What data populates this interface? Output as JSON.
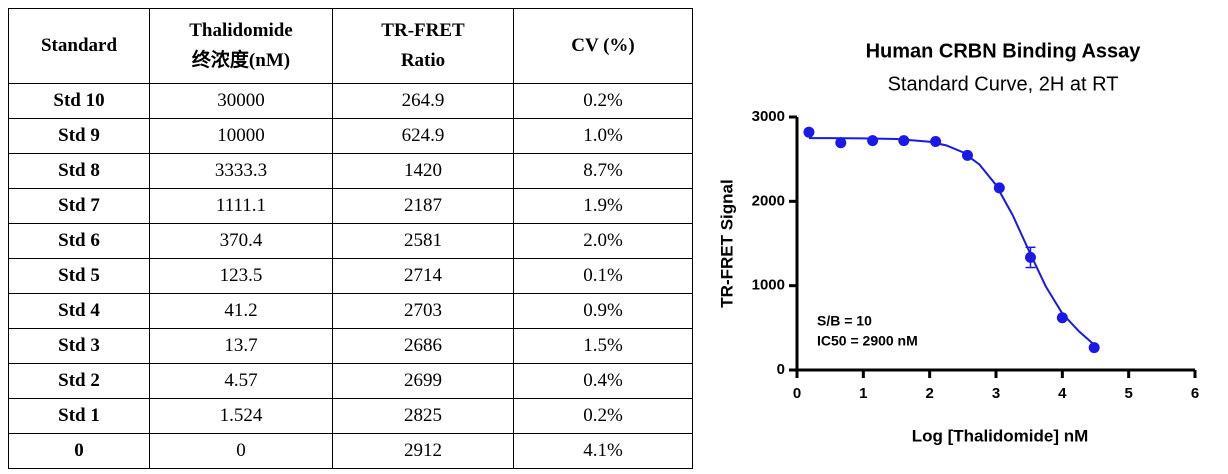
{
  "table": {
    "header": [
      [
        "Standard"
      ],
      [
        "Thalidomide",
        "终浓度(nM)"
      ],
      [
        "TR-FRET",
        "Ratio"
      ],
      [
        "CV (%)"
      ]
    ],
    "rows": [
      [
        "Std 10",
        "30000",
        "264.9",
        "0.2%"
      ],
      [
        "Std 9",
        "10000",
        "624.9",
        "1.0%"
      ],
      [
        "Std 8",
        "3333.3",
        "1420",
        "8.7%"
      ],
      [
        "Std 7",
        "1111.1",
        "2187",
        "1.9%"
      ],
      [
        "Std 6",
        "370.4",
        "2581",
        "2.0%"
      ],
      [
        "Std 5",
        "123.5",
        "2714",
        "0.1%"
      ],
      [
        "Std 4",
        "41.2",
        "2703",
        "0.9%"
      ],
      [
        "Std 3",
        "13.7",
        "2686",
        "1.5%"
      ],
      [
        "Std 2",
        "4.57",
        "2699",
        "0.4%"
      ],
      [
        "Std 1",
        "1.524",
        "2825",
        "0.2%"
      ],
      [
        "0",
        "0",
        "2912",
        "4.1%"
      ]
    ]
  },
  "chart_data": {
    "type": "scatter",
    "title": "Human CRBN Binding Assay",
    "subtitle": "Standard Curve, 2H at RT",
    "x_label": "Log [Thalidomide] nM",
    "y_label": "TR-FRET Signal",
    "annotations": [
      "S/B = 10",
      "IC50 = 2900 nM"
    ],
    "color": "#1a1ae6",
    "x": [
      0.18,
      0.66,
      1.14,
      1.61,
      2.09,
      2.57,
      3.05,
      3.52,
      4.0,
      4.48
    ],
    "values": [
      2820,
      2695,
      2720,
      2720,
      2710,
      2545,
      2160,
      1335,
      620,
      265
    ],
    "errors": [
      null,
      null,
      null,
      null,
      null,
      null,
      null,
      120,
      null,
      null
    ],
    "fit": {
      "x": [
        0.18,
        0.5,
        1.0,
        1.5,
        2.0,
        2.25,
        2.5,
        2.75,
        3.0,
        3.25,
        3.5,
        3.75,
        4.0,
        4.25,
        4.48
      ],
      "values": [
        2750,
        2750,
        2747,
        2739,
        2706,
        2664,
        2582,
        2437,
        2194,
        1838,
        1408,
        992,
        670,
        459,
        300
      ]
    },
    "xlim": [
      0,
      6
    ],
    "xticks": [
      0,
      1,
      2,
      3,
      4,
      5,
      6
    ],
    "ylim": [
      0,
      3000
    ],
    "yticks": [
      0,
      1000,
      2000,
      3000
    ]
  }
}
